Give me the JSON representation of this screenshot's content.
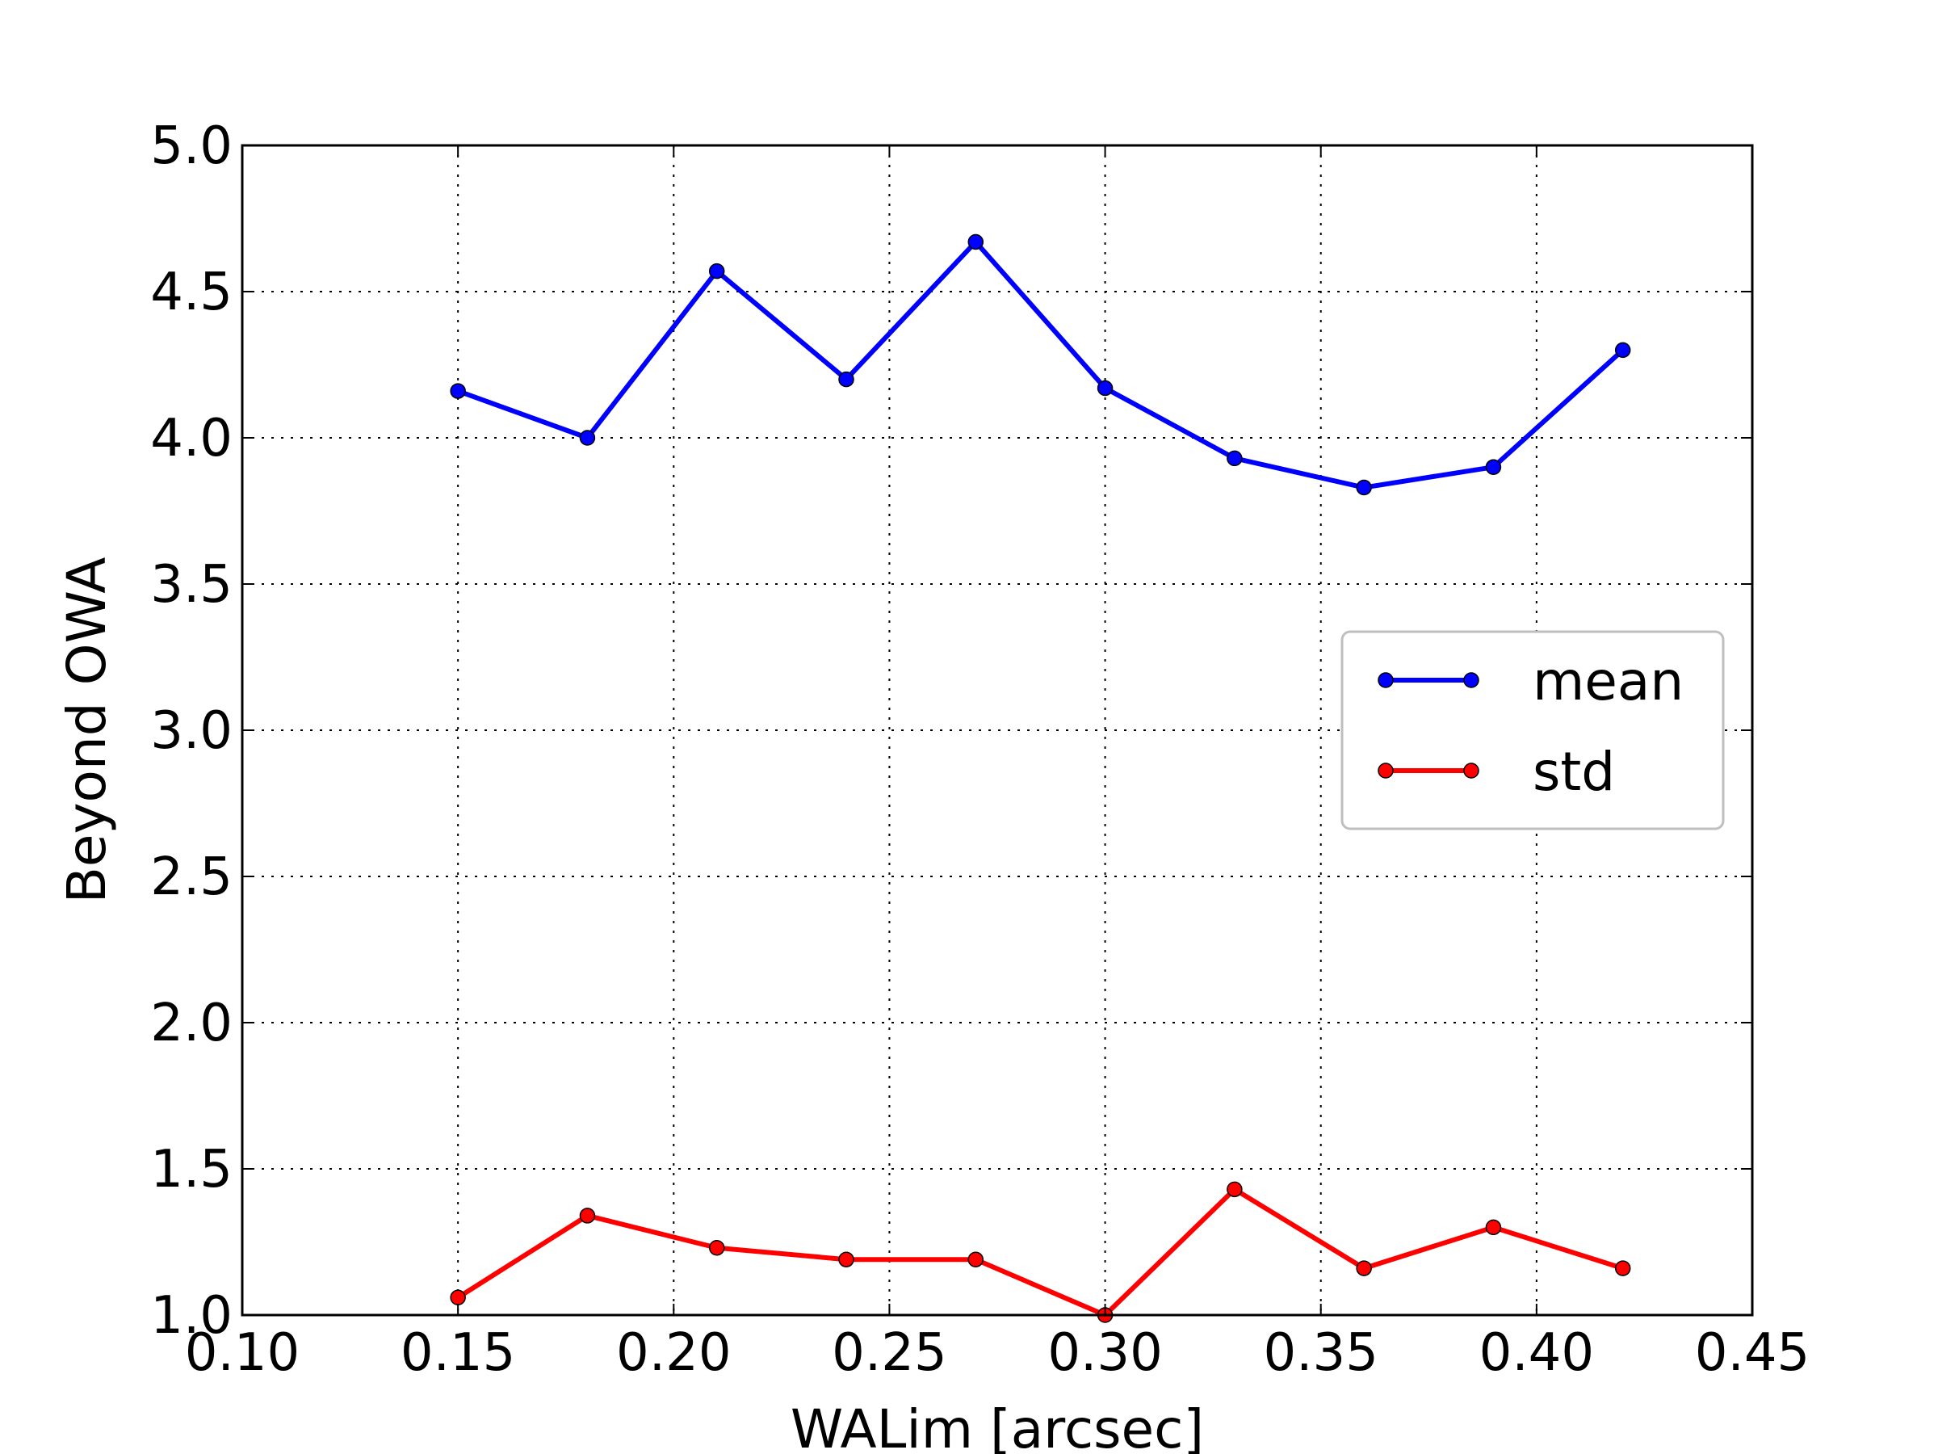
{
  "chart_data": {
    "type": "line",
    "title": "",
    "xlabel": "WALim [arcsec]",
    "ylabel": "Beyond OWA",
    "xlim": [
      0.1,
      0.45
    ],
    "ylim": [
      1.0,
      5.0
    ],
    "xticks": [
      "0.10",
      "0.15",
      "0.20",
      "0.25",
      "0.30",
      "0.35",
      "0.40",
      "0.45"
    ],
    "yticks": [
      "1.0",
      "1.5",
      "2.0",
      "2.5",
      "3.0",
      "3.5",
      "4.0",
      "4.5",
      "5.0"
    ],
    "grid": true,
    "legend_position": "center-right",
    "x": [
      0.15,
      0.18,
      0.21,
      0.24,
      0.27,
      0.3,
      0.33,
      0.36,
      0.39,
      0.42
    ],
    "series": [
      {
        "name": "mean",
        "color": "#0000ff",
        "values": [
          4.16,
          4.0,
          4.57,
          4.2,
          4.67,
          4.17,
          3.93,
          3.83,
          3.9,
          4.3
        ]
      },
      {
        "name": "std",
        "color": "#ff0000",
        "values": [
          1.06,
          1.34,
          1.23,
          1.19,
          1.19,
          1.0,
          1.43,
          1.16,
          1.3,
          1.16
        ]
      }
    ]
  }
}
